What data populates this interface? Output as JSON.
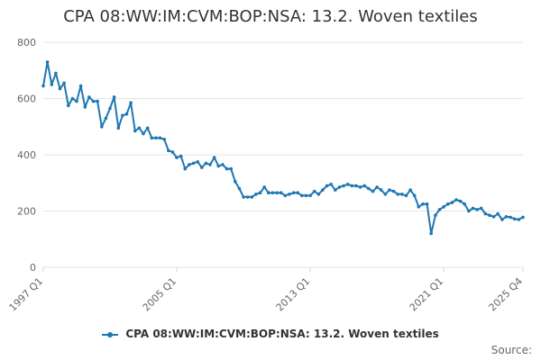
{
  "colors": {
    "series": "#1f77b4",
    "grid": "#e6e6e6",
    "text": "#333333",
    "axis_text": "#666666"
  },
  "source_label": "Source:",
  "chart_data": {
    "type": "line",
    "title": "CPA 08:WW:IM:CVM:BOP:NSA: 13.2. Woven textiles",
    "xlabel": "",
    "ylabel": "",
    "ylim": [
      0,
      800
    ],
    "yticks": [
      0,
      200,
      400,
      600,
      800
    ],
    "xticks": [
      "1997 Q1",
      "2005 Q1",
      "2013 Q1",
      "2021 Q1",
      "2025 Q4"
    ],
    "grid": true,
    "legend_position": "bottom",
    "x": [
      "1997 Q1",
      "1997 Q2",
      "1997 Q3",
      "1997 Q4",
      "1998 Q1",
      "1998 Q2",
      "1998 Q3",
      "1998 Q4",
      "1999 Q1",
      "1999 Q2",
      "1999 Q3",
      "1999 Q4",
      "2000 Q1",
      "2000 Q2",
      "2000 Q3",
      "2000 Q4",
      "2001 Q1",
      "2001 Q2",
      "2001 Q3",
      "2001 Q4",
      "2002 Q1",
      "2002 Q2",
      "2002 Q3",
      "2002 Q4",
      "2003 Q1",
      "2003 Q2",
      "2003 Q3",
      "2003 Q4",
      "2004 Q1",
      "2004 Q2",
      "2004 Q3",
      "2004 Q4",
      "2005 Q1",
      "2005 Q2",
      "2005 Q3",
      "2005 Q4",
      "2006 Q1",
      "2006 Q2",
      "2006 Q3",
      "2006 Q4",
      "2007 Q1",
      "2007 Q2",
      "2007 Q3",
      "2007 Q4",
      "2008 Q1",
      "2008 Q2",
      "2008 Q3",
      "2008 Q4",
      "2009 Q1",
      "2009 Q2",
      "2009 Q3",
      "2009 Q4",
      "2010 Q1",
      "2010 Q2",
      "2010 Q3",
      "2010 Q4",
      "2011 Q1",
      "2011 Q2",
      "2011 Q3",
      "2011 Q4",
      "2012 Q1",
      "2012 Q2",
      "2012 Q3",
      "2012 Q4",
      "2013 Q1",
      "2013 Q2",
      "2013 Q3",
      "2013 Q4",
      "2014 Q1",
      "2014 Q2",
      "2014 Q3",
      "2014 Q4",
      "2015 Q1",
      "2015 Q2",
      "2015 Q3",
      "2015 Q4",
      "2016 Q1",
      "2016 Q2",
      "2016 Q3",
      "2016 Q4",
      "2017 Q1",
      "2017 Q2",
      "2017 Q3",
      "2017 Q4",
      "2018 Q1",
      "2018 Q2",
      "2018 Q3",
      "2018 Q4",
      "2019 Q1",
      "2019 Q2",
      "2019 Q3",
      "2019 Q4",
      "2020 Q1",
      "2020 Q2",
      "2020 Q3",
      "2020 Q4",
      "2021 Q1",
      "2021 Q2",
      "2021 Q3",
      "2021 Q4",
      "2022 Q1",
      "2022 Q2",
      "2022 Q3",
      "2022 Q4",
      "2023 Q1",
      "2023 Q2",
      "2023 Q3",
      "2023 Q4",
      "2024 Q1",
      "2024 Q2",
      "2024 Q3",
      "2024 Q4",
      "2025 Q1",
      "2025 Q2",
      "2025 Q3",
      "2025 Q4"
    ],
    "series": [
      {
        "name": "CPA 08:WW:IM:CVM:BOP:NSA: 13.2. Woven textiles",
        "values": [
          645,
          730,
          650,
          690,
          635,
          655,
          575,
          600,
          590,
          645,
          570,
          605,
          590,
          590,
          500,
          530,
          565,
          605,
          495,
          540,
          545,
          585,
          485,
          495,
          475,
          495,
          460,
          460,
          460,
          455,
          415,
          410,
          390,
          395,
          350,
          365,
          370,
          375,
          355,
          370,
          365,
          390,
          360,
          365,
          350,
          350,
          305,
          280,
          250,
          250,
          250,
          260,
          265,
          285,
          265,
          265,
          265,
          265,
          255,
          260,
          265,
          265,
          255,
          255,
          255,
          270,
          260,
          275,
          290,
          295,
          275,
          285,
          290,
          295,
          290,
          290,
          285,
          290,
          280,
          270,
          285,
          275,
          260,
          275,
          270,
          260,
          260,
          255,
          275,
          255,
          215,
          225,
          225,
          120,
          185,
          205,
          215,
          225,
          230,
          240,
          235,
          225,
          200,
          210,
          205,
          210,
          190,
          185,
          180,
          190,
          170,
          180,
          178,
          172,
          170,
          178
        ]
      }
    ]
  }
}
